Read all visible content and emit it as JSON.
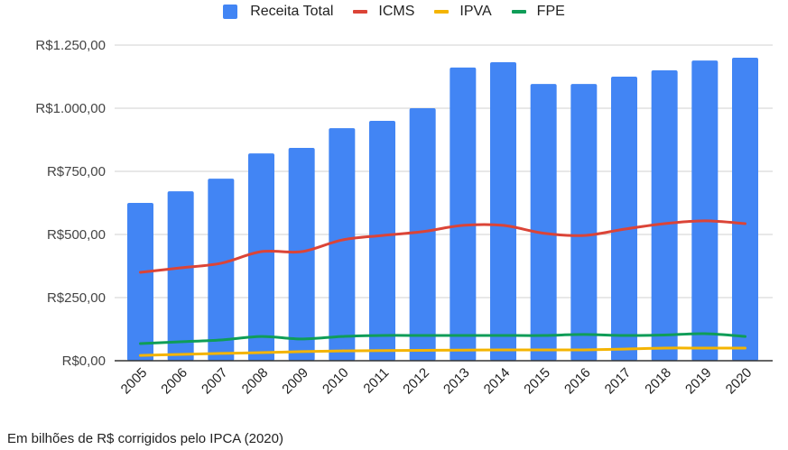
{
  "chart_data": {
    "type": "bar",
    "title": "",
    "xlabel": "",
    "ylabel": "",
    "ylim": [
      0,
      1250
    ],
    "grid": true,
    "legend_position": "top-center",
    "y_ticks": [
      0,
      250,
      500,
      750,
      1000,
      1250
    ],
    "y_tick_labels": [
      "R$0,00",
      "R$250,00",
      "R$500,00",
      "R$750,00",
      "R$1.000,00",
      "R$1.250,00"
    ],
    "categories": [
      "2005",
      "2006",
      "2007",
      "2008",
      "2009",
      "2010",
      "2011",
      "2012",
      "2013",
      "2014",
      "2015",
      "2016",
      "2017",
      "2018",
      "2019",
      "2020"
    ],
    "series": [
      {
        "name": "Receita Total",
        "kind": "bar",
        "color": "#4285f4",
        "values": [
          625,
          671,
          721,
          821,
          843,
          921,
          950,
          1000,
          1161,
          1182,
          1096,
          1096,
          1125,
          1150,
          1189,
          1200
        ]
      },
      {
        "name": "ICMS",
        "kind": "line",
        "color": "#db4437",
        "values": [
          350,
          368,
          386,
          432,
          432,
          478,
          496,
          511,
          536,
          536,
          505,
          496,
          521,
          543,
          554,
          543
        ]
      },
      {
        "name": "IPVA",
        "kind": "line",
        "color": "#f4b400",
        "values": [
          21,
          25,
          29,
          32,
          36,
          39,
          40,
          41,
          42,
          43,
          43,
          43,
          46,
          50,
          50,
          50
        ]
      },
      {
        "name": "FPE",
        "kind": "line",
        "color": "#0f9d58",
        "values": [
          68,
          75,
          82,
          96,
          86,
          96,
          100,
          100,
          100,
          100,
          100,
          104,
          100,
          102,
          107,
          96
        ]
      }
    ]
  },
  "legend": {
    "items": [
      {
        "label": "Receita Total",
        "color": "#4285f4",
        "shape": "box"
      },
      {
        "label": "ICMS",
        "color": "#db4437",
        "shape": "line"
      },
      {
        "label": "IPVA",
        "color": "#f4b400",
        "shape": "line"
      },
      {
        "label": "FPE",
        "color": "#0f9d58",
        "shape": "line"
      }
    ]
  },
  "footer": {
    "note": "Em bilhões de R$ corrigidos pelo IPCA (2020)"
  }
}
